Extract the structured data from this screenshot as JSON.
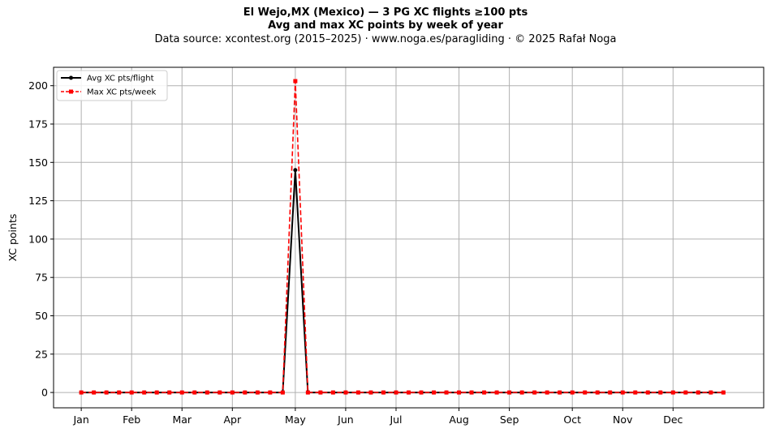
{
  "chart_data": {
    "type": "line",
    "title": "El Wejo,MX (Mexico)  —  3 PG XC flights ≥100 pts",
    "subtitle": "Avg and max XC points by week of year",
    "source_line": "Data source: xcontest.org (2015–2025)  ·  www.noga.es/paragliding  ·  © 2025 Rafał Noga",
    "xlabel": "",
    "ylabel": "XC points",
    "ylim": [
      -10,
      212
    ],
    "xlim": [
      -2.2,
      54.2
    ],
    "grid": true,
    "legend_position": "top-left",
    "y_ticks": [
      0,
      25,
      50,
      75,
      100,
      125,
      150,
      175,
      200
    ],
    "x_ticks": [
      {
        "label": "Jan",
        "week": 0
      },
      {
        "label": "Feb",
        "week": 4
      },
      {
        "label": "Mar",
        "week": 8
      },
      {
        "label": "Apr",
        "week": 12
      },
      {
        "label": "May",
        "week": 17
      },
      {
        "label": "Jun",
        "week": 21
      },
      {
        "label": "Jul",
        "week": 25
      },
      {
        "label": "Aug",
        "week": 30
      },
      {
        "label": "Sep",
        "week": 34
      },
      {
        "label": "Oct",
        "week": 39
      },
      {
        "label": "Nov",
        "week": 43
      },
      {
        "label": "Dec",
        "week": 47
      }
    ],
    "x": [
      0,
      1,
      2,
      3,
      4,
      5,
      6,
      7,
      8,
      9,
      10,
      11,
      12,
      13,
      14,
      15,
      16,
      17,
      18,
      19,
      20,
      21,
      22,
      23,
      24,
      25,
      26,
      27,
      28,
      29,
      30,
      31,
      32,
      33,
      34,
      35,
      36,
      37,
      38,
      39,
      40,
      41,
      42,
      43,
      44,
      45,
      46,
      47,
      48,
      49,
      50,
      51
    ],
    "series": [
      {
        "name": "Avg XC pts/flight",
        "color": "#000000",
        "style": "solid",
        "marker": "circle",
        "values": [
          0,
          0,
          0,
          0,
          0,
          0,
          0,
          0,
          0,
          0,
          0,
          0,
          0,
          0,
          0,
          0,
          0,
          145,
          0,
          0,
          0,
          0,
          0,
          0,
          0,
          0,
          0,
          0,
          0,
          0,
          0,
          0,
          0,
          0,
          0,
          0,
          0,
          0,
          0,
          0,
          0,
          0,
          0,
          0,
          0,
          0,
          0,
          0,
          0,
          0,
          0,
          0
        ]
      },
      {
        "name": "Max XC pts/week",
        "color": "#ff0000",
        "style": "dashed",
        "marker": "square",
        "values": [
          0,
          0,
          0,
          0,
          0,
          0,
          0,
          0,
          0,
          0,
          0,
          0,
          0,
          0,
          0,
          0,
          0,
          203,
          0,
          0,
          0,
          0,
          0,
          0,
          0,
          0,
          0,
          0,
          0,
          0,
          0,
          0,
          0,
          0,
          0,
          0,
          0,
          0,
          0,
          0,
          0,
          0,
          0,
          0,
          0,
          0,
          0,
          0,
          0,
          0,
          0,
          0
        ]
      }
    ]
  }
}
